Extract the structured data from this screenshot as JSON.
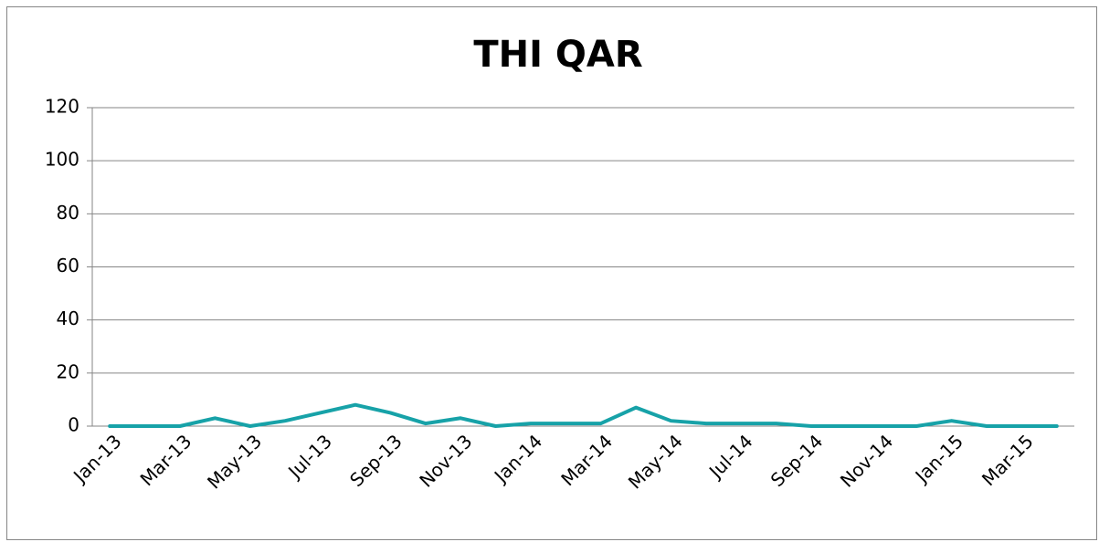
{
  "chart_data": {
    "type": "line",
    "title": "THI QAR",
    "categories": [
      "Jan-13",
      null,
      "Mar-13",
      null,
      "May-13",
      null,
      "Jul-13",
      null,
      "Sep-13",
      null,
      "Nov-13",
      null,
      "Jan-14",
      null,
      "Mar-14",
      null,
      "May-14",
      null,
      "Jul-14",
      null,
      "Sep-14",
      null,
      "Nov-14",
      null,
      "Jan-15",
      null,
      "Mar-15",
      null
    ],
    "values": [
      0,
      0,
      0,
      3,
      0,
      2,
      5,
      8,
      5,
      1,
      3,
      0,
      1,
      1,
      1,
      7,
      2,
      1,
      1,
      1,
      0,
      0,
      0,
      0,
      2,
      0,
      0,
      0
    ],
    "color": "#17a2a8",
    "ylim": [
      0,
      120
    ],
    "yticks": [
      0,
      20,
      40,
      60,
      80,
      100,
      120
    ],
    "grid": true
  }
}
